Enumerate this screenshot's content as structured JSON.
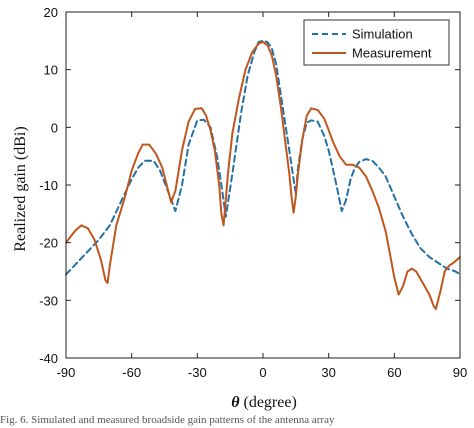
{
  "chart_data": {
    "type": "line",
    "xlabel_symbol": "θ",
    "xlabel_rest": " (degree)",
    "ylabel": "Realized gain (dBi)",
    "xlim": [
      -90,
      90
    ],
    "ylim": [
      -40,
      20
    ],
    "xticks": [
      -90,
      -60,
      -30,
      0,
      30,
      60,
      90
    ],
    "yticks": [
      -40,
      -30,
      -20,
      -10,
      0,
      10,
      20
    ],
    "grid": false,
    "legend_position": "top-right",
    "series": [
      {
        "name": "Simulation",
        "color": "#2471a3",
        "style": "dashed",
        "x": [
          -90,
          -85,
          -80,
          -75,
          -70,
          -65,
          -60,
          -57,
          -54,
          -50,
          -47,
          -45,
          -42,
          -40,
          -37,
          -34,
          -30,
          -27,
          -24,
          -21,
          -19,
          -17,
          -14,
          -10,
          -7,
          -4,
          -2,
          0,
          2,
          4,
          6,
          8,
          10,
          12,
          14,
          15,
          16,
          18,
          20,
          22,
          25,
          28,
          30,
          33,
          36,
          38,
          40,
          42,
          44,
          47,
          50,
          53,
          56,
          60,
          64,
          68,
          72,
          76,
          80,
          84,
          88,
          90
        ],
        "y": [
          -25.5,
          -23.5,
          -21.5,
          -19.5,
          -17,
          -13,
          -9,
          -7,
          -5.8,
          -5.8,
          -7.5,
          -9.5,
          -12.5,
          -14.5,
          -10,
          -3,
          1.2,
          1.3,
          0,
          -5,
          -10,
          -15.5,
          -8,
          2.5,
          9,
          13,
          14.8,
          15,
          14.8,
          13.7,
          11,
          6,
          1,
          -4,
          -9,
          -11.5,
          -7,
          -2,
          0.8,
          1.2,
          1,
          -1.5,
          -4,
          -9,
          -14.5,
          -12.5,
          -9,
          -7,
          -6,
          -5.5,
          -5.8,
          -7,
          -8.5,
          -12,
          -15.5,
          -18.5,
          -21,
          -22.5,
          -23.5,
          -24.5,
          -25,
          -25.5
        ]
      },
      {
        "name": "Measurement",
        "color": "#c0561e",
        "style": "solid",
        "x": [
          -90,
          -86,
          -83,
          -80,
          -77,
          -74,
          -72,
          -71,
          -70,
          -67,
          -63,
          -60,
          -57,
          -55,
          -52,
          -49,
          -46,
          -44,
          -42,
          -40,
          -37,
          -34,
          -31,
          -28,
          -26,
          -24,
          -22,
          -20,
          -19,
          -18,
          -16,
          -14,
          -11,
          -8,
          -5,
          -2,
          0,
          2,
          4,
          6,
          8,
          10,
          12,
          13,
          14,
          15,
          16,
          18,
          20,
          22,
          25,
          28,
          30,
          32,
          35,
          38,
          41,
          44,
          47,
          50,
          53,
          56,
          58,
          60,
          62,
          64,
          66,
          68,
          70,
          73,
          76,
          78,
          79,
          81,
          83,
          85,
          87,
          90
        ],
        "y": [
          -20,
          -18,
          -17,
          -17.5,
          -19.5,
          -23,
          -26.5,
          -27,
          -24,
          -17,
          -12,
          -7.5,
          -4.5,
          -3,
          -3,
          -4.5,
          -7,
          -10,
          -13,
          -11,
          -4,
          1,
          3.2,
          3.3,
          2,
          -0.5,
          -4,
          -10,
          -15,
          -17,
          -8,
          -1,
          5,
          10,
          13,
          14.5,
          14.8,
          14.3,
          12.5,
          9,
          4,
          -2,
          -8,
          -12,
          -14.8,
          -12,
          -8,
          -2,
          2,
          3.3,
          3,
          1.5,
          -0.5,
          -2.5,
          -5,
          -6.5,
          -6.5,
          -7,
          -8.5,
          -11,
          -14,
          -18,
          -22,
          -26,
          -29,
          -27.5,
          -25,
          -24.5,
          -25,
          -27,
          -29,
          -31,
          -31.5,
          -28.5,
          -25,
          -24,
          -23.5,
          -22.5
        ]
      }
    ]
  },
  "caption": "Fig. 6. Simulated and measured broadside gain patterns of the antenna array"
}
